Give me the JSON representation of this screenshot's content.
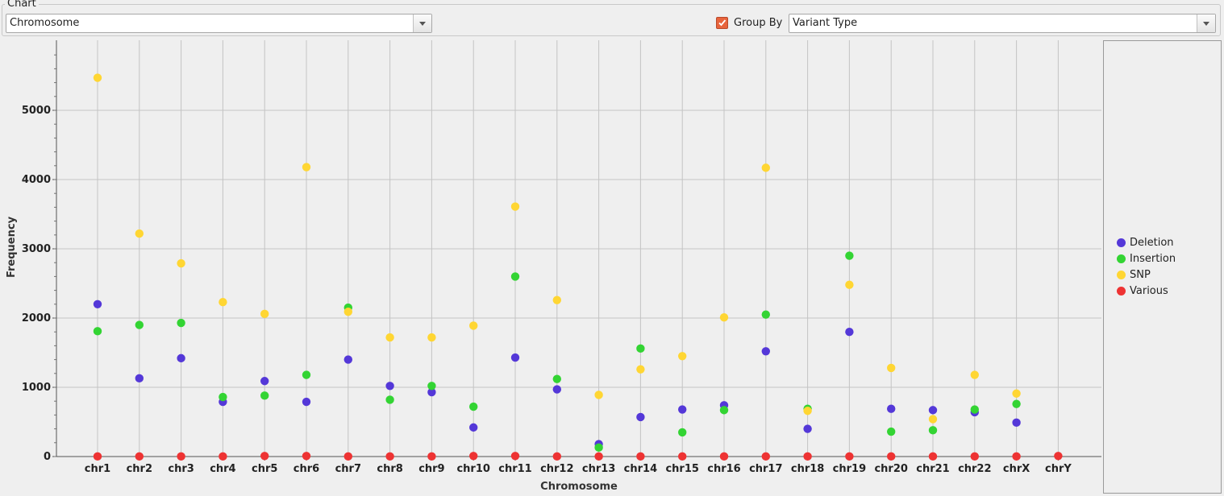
{
  "panel": {
    "title": "Chart"
  },
  "chart_combo": {
    "value": "Chromosome"
  },
  "group_by": {
    "checked": true,
    "label": "Group By",
    "value": "Variant Type"
  },
  "legend": [
    {
      "name": "Deletion",
      "color": "#5438d8"
    },
    {
      "name": "Insertion",
      "color": "#33d433"
    },
    {
      "name": "SNP",
      "color": "#ffd633"
    },
    {
      "name": "Various",
      "color": "#ee3333"
    }
  ],
  "chart_data": {
    "type": "scatter",
    "xlabel": "Chromosome",
    "ylabel": "Frequency",
    "ylim": [
      0,
      6000
    ],
    "yticks": [
      0,
      1000,
      2000,
      3000,
      4000,
      5000
    ],
    "grid": true,
    "legend_position": "right",
    "categories": [
      "chr1",
      "chr2",
      "chr3",
      "chr4",
      "chr5",
      "chr6",
      "chr7",
      "chr8",
      "chr9",
      "chr10",
      "chr11",
      "chr12",
      "chr13",
      "chr14",
      "chr15",
      "chr16",
      "chr17",
      "chr18",
      "chr19",
      "chr20",
      "chr21",
      "chr22",
      "chrX",
      "chrY"
    ],
    "series": [
      {
        "name": "Deletion",
        "color": "#5438d8",
        "values": [
          2200,
          1130,
          1420,
          790,
          1090,
          790,
          1400,
          1020,
          930,
          420,
          1430,
          970,
          180,
          570,
          680,
          740,
          1520,
          400,
          1800,
          690,
          670,
          640,
          490,
          null
        ]
      },
      {
        "name": "Insertion",
        "color": "#33d433",
        "values": [
          1810,
          1900,
          1930,
          860,
          880,
          1180,
          2150,
          820,
          1020,
          720,
          2600,
          1120,
          130,
          1560,
          350,
          670,
          2050,
          690,
          2900,
          360,
          380,
          680,
          760,
          null
        ]
      },
      {
        "name": "SNP",
        "color": "#ffd633",
        "values": [
          5470,
          3220,
          2790,
          2230,
          2060,
          4180,
          2090,
          1720,
          1720,
          1890,
          3610,
          2260,
          890,
          1260,
          1450,
          2010,
          4170,
          660,
          2480,
          1280,
          540,
          1180,
          910,
          null
        ]
      },
      {
        "name": "Various",
        "color": "#ee3333",
        "values": [
          2,
          2,
          2,
          2,
          8,
          8,
          2,
          2,
          2,
          8,
          8,
          2,
          2,
          2,
          2,
          2,
          2,
          2,
          2,
          2,
          2,
          2,
          2,
          8
        ]
      }
    ]
  }
}
